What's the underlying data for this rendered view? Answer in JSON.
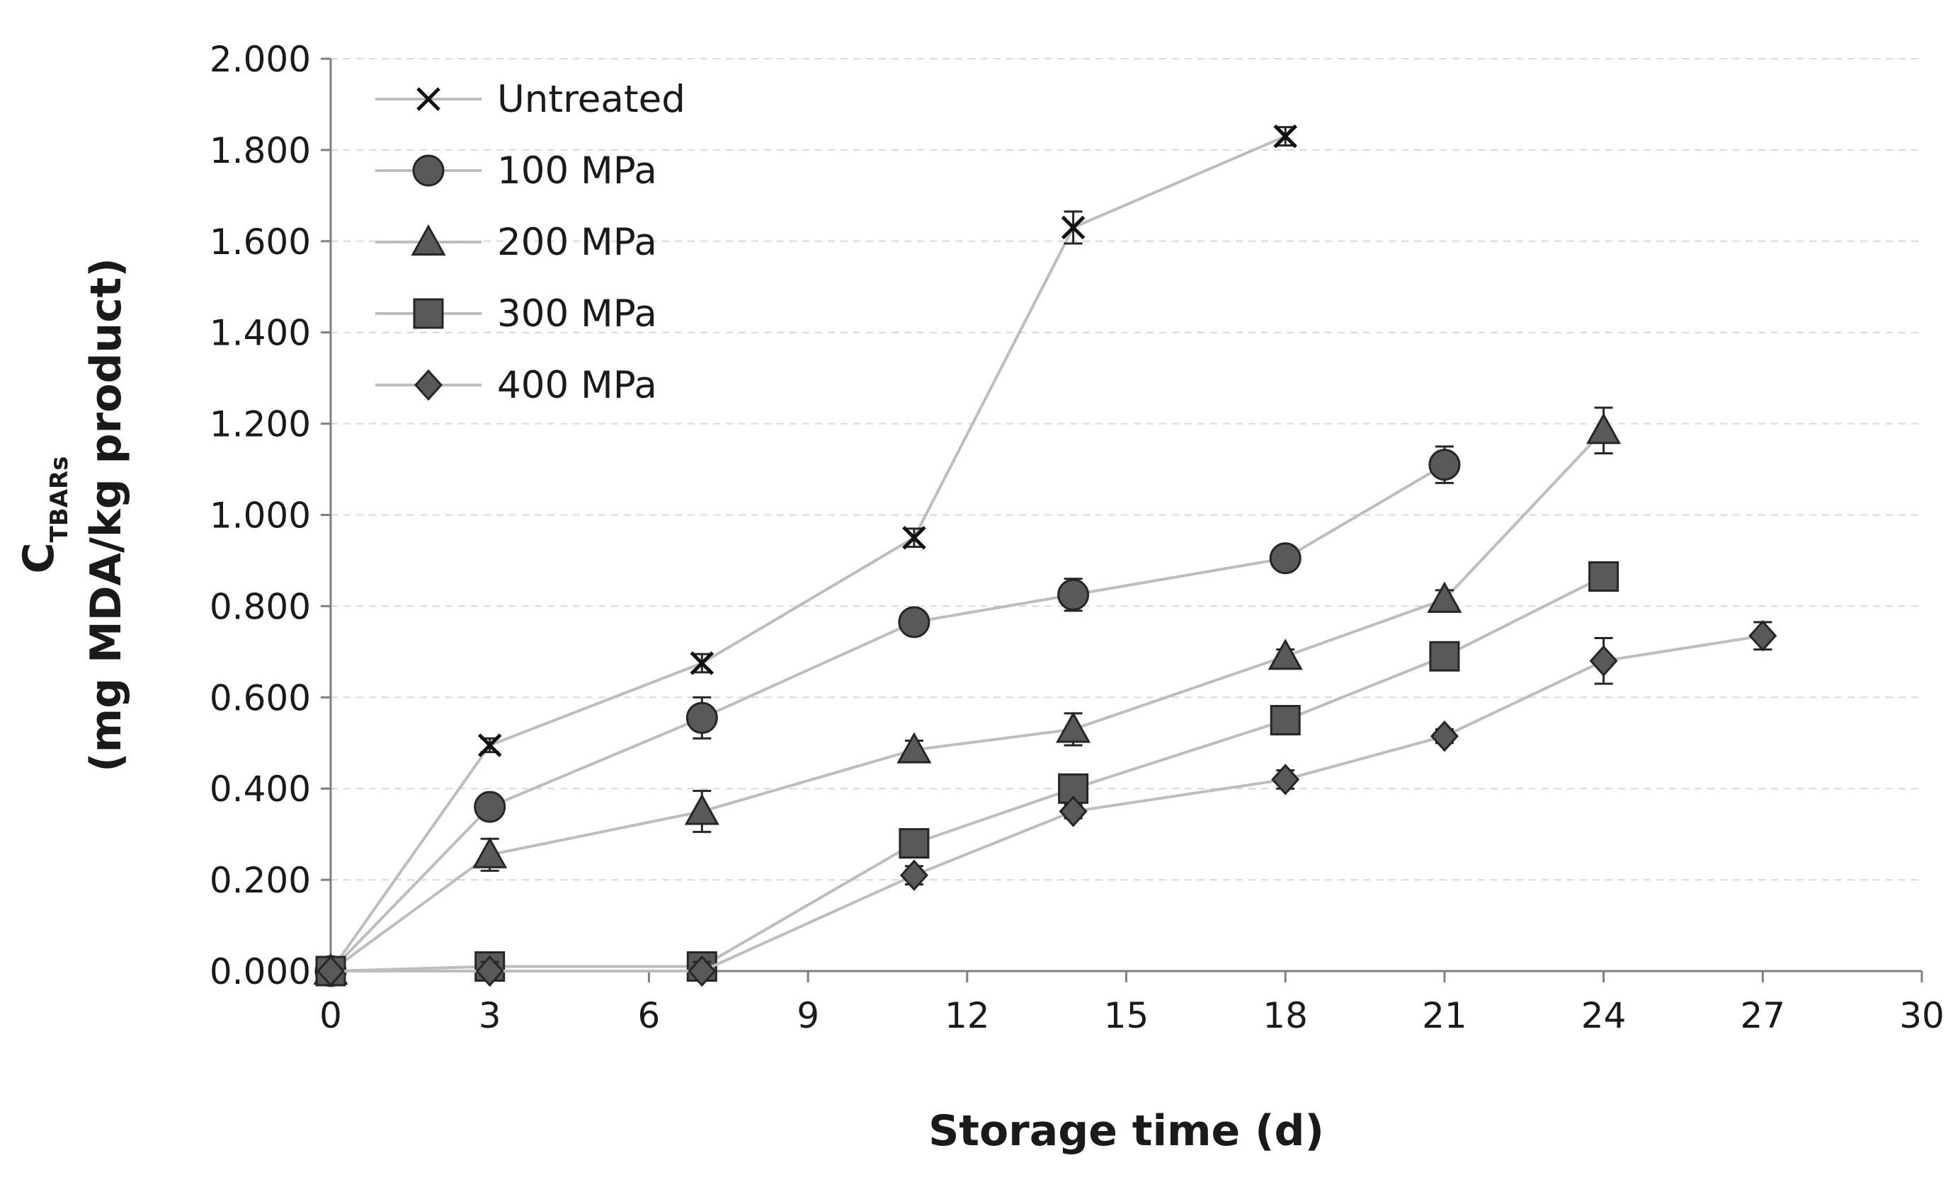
{
  "chart_data": {
    "type": "line",
    "title": "",
    "xlabel": "Storage time (d)",
    "ylabel_main": "C",
    "ylabel_sub": "TBARs",
    "ylabel_line2": "(mg MDA/kg product)",
    "xlim": [
      0,
      30
    ],
    "ylim": [
      0,
      2
    ],
    "xticks": [
      0,
      3,
      6,
      9,
      12,
      15,
      18,
      21,
      24,
      27,
      30
    ],
    "xtick_labels": [
      "0",
      "3",
      "6",
      "9",
      "12",
      "15",
      "18",
      "21",
      "24",
      "27",
      "30"
    ],
    "yticks": [
      0,
      0.2,
      0.4,
      0.6,
      0.8,
      1.0,
      1.2,
      1.4,
      1.6,
      1.8,
      2.0
    ],
    "ytick_labels": [
      "0.000",
      "0.200",
      "0.400",
      "0.600",
      "0.800",
      "1.000",
      "1.200",
      "1.400",
      "1.600",
      "1.800",
      "2.000"
    ],
    "grid": "horizontal-dashed",
    "legend_position": "top-left",
    "colors": {
      "line": "#bdbdbd",
      "marker_fill": "#595959",
      "marker_edge": "#262626",
      "errorbar": "#262626",
      "grid": "#d9d9d9",
      "axis": "#7f7f7f"
    },
    "series": [
      {
        "name": "Untreated",
        "marker": "x",
        "x": [
          0,
          3,
          7,
          11,
          14,
          18
        ],
        "y": [
          0.0,
          0.495,
          0.675,
          0.95,
          1.63,
          1.83
        ],
        "err": [
          0.0,
          0.015,
          0.02,
          0.02,
          0.035,
          0.02
        ]
      },
      {
        "name": "100 MPa",
        "marker": "circle",
        "x": [
          0,
          3,
          7,
          11,
          14,
          18,
          21
        ],
        "y": [
          0.0,
          0.36,
          0.555,
          0.765,
          0.825,
          0.905,
          1.11
        ],
        "err": [
          0.0,
          0.02,
          0.045,
          0.015,
          0.035,
          0.02,
          0.04
        ]
      },
      {
        "name": "200 MPa",
        "marker": "triangle",
        "x": [
          0,
          3,
          7,
          11,
          14,
          18,
          21,
          24
        ],
        "y": [
          0.0,
          0.255,
          0.35,
          0.485,
          0.53,
          0.69,
          0.815,
          1.185
        ],
        "err": [
          0.0,
          0.035,
          0.045,
          0.02,
          0.035,
          0.015,
          0.02,
          0.05
        ]
      },
      {
        "name": "300 MPa",
        "marker": "square",
        "x": [
          0,
          3,
          7,
          11,
          14,
          18,
          21,
          24
        ],
        "y": [
          0.0,
          0.01,
          0.01,
          0.28,
          0.4,
          0.55,
          0.69,
          0.865
        ],
        "err": [
          0.0,
          0.02,
          0.02,
          0.02,
          0.02,
          0.02,
          0.015,
          0.03
        ]
      },
      {
        "name": "400 MPa",
        "marker": "diamond",
        "x": [
          0,
          3,
          7,
          11,
          14,
          18,
          21,
          24,
          27
        ],
        "y": [
          0.0,
          0.0,
          0.0,
          0.21,
          0.35,
          0.42,
          0.515,
          0.68,
          0.735
        ],
        "err": [
          0.0,
          0.02,
          0.02,
          0.02,
          0.015,
          0.02,
          0.015,
          0.05,
          0.03
        ]
      }
    ]
  }
}
